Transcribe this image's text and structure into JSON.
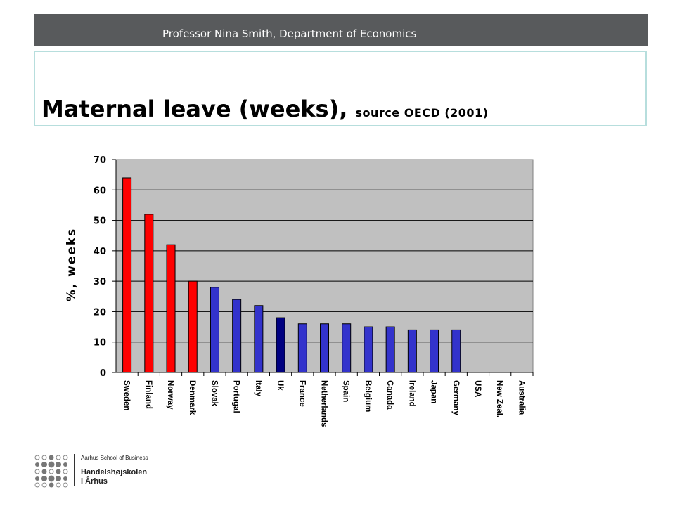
{
  "header": {
    "text": "Professor Nina Smith, Department of Economics"
  },
  "slide": {
    "title": "Maternal leave (weeks),",
    "subtitle": "source OECD (2001)"
  },
  "colors": {
    "plot_background": "#c0c0c0",
    "nordic_bar": "#ff0000",
    "other_bar": "#3333cc",
    "highlight_bar": "#000080",
    "title_box_border": "#b7dedd",
    "header_bar": "#585a5c"
  },
  "chart_data": {
    "type": "bar",
    "title": "",
    "xlabel": "",
    "ylabel": "%, weeks",
    "ylim": [
      0,
      70
    ],
    "yticks": [
      0,
      10,
      20,
      30,
      40,
      50,
      60,
      70
    ],
    "grid": true,
    "categories": [
      "Sweden",
      "Finland",
      "Norway",
      "Denmark",
      "Slovak",
      "Portugal",
      "Italy",
      "Uk",
      "France",
      "Netherlands",
      "Spain",
      "Belgium",
      "Canada",
      "Ireland",
      "Japan",
      "Germany",
      "USA",
      "New Zeal.",
      "Australia"
    ],
    "values": [
      64,
      52,
      42,
      30,
      28,
      24,
      22,
      18,
      16,
      16,
      16,
      15,
      15,
      14,
      14,
      14,
      0,
      0,
      0
    ],
    "bar_colors": [
      "red",
      "red",
      "red",
      "red",
      "blue",
      "blue",
      "blue",
      "navy",
      "blue",
      "blue",
      "blue",
      "blue",
      "blue",
      "blue",
      "blue",
      "blue",
      "blue",
      "blue",
      "blue"
    ]
  },
  "logo": {
    "line1": "Aarhus School of Business",
    "line2": "Handelshøjskolen",
    "line3": "i Århus"
  }
}
